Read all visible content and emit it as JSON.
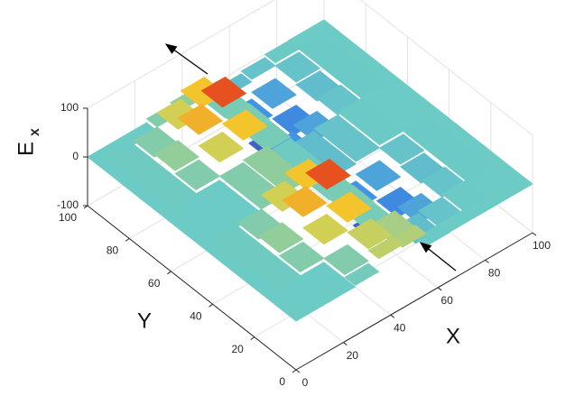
{
  "chart_data": {
    "type": "surface",
    "xlabel": "X",
    "ylabel": "Y",
    "zlabel": "E",
    "zlabel_subscript": "x",
    "x": [
      0,
      10,
      20,
      30,
      40,
      50,
      60,
      70,
      80,
      90,
      100
    ],
    "y": [
      0,
      10,
      20,
      30,
      40,
      50,
      60,
      70,
      80,
      90,
      100
    ],
    "z": [
      [
        0,
        0,
        0,
        3,
        30,
        25,
        -1,
        0,
        0,
        0,
        0
      ],
      [
        0,
        0,
        0,
        8,
        33,
        21,
        -12,
        -7,
        -1,
        0,
        0
      ],
      [
        0,
        1,
        8,
        37,
        54,
        4,
        -47,
        -33,
        -7,
        -1,
        0
      ],
      [
        0,
        1,
        14,
        60,
        88,
        6,
        -76,
        -54,
        -12,
        -1,
        0
      ],
      [
        0,
        1,
        8,
        37,
        54,
        4,
        -47,
        -33,
        -7,
        -1,
        0
      ],
      [
        0,
        0,
        0,
        8,
        13,
        1,
        -12,
        -7,
        -1,
        0,
        0
      ],
      [
        0,
        0,
        0,
        8,
        13,
        1,
        -12,
        -7,
        -1,
        0,
        0
      ],
      [
        0,
        1,
        8,
        37,
        54,
        4,
        -47,
        -33,
        -7,
        -1,
        0
      ],
      [
        0,
        1,
        14,
        60,
        88,
        6,
        -76,
        -54,
        -12,
        -1,
        0
      ],
      [
        0,
        1,
        8,
        37,
        54,
        4,
        -47,
        -33,
        -7,
        -1,
        0
      ],
      [
        0,
        0,
        0,
        8,
        13,
        1,
        -12,
        -7,
        -1,
        0,
        0
      ]
    ],
    "xlim": [
      0,
      100
    ],
    "xticks": [
      0,
      20,
      40,
      60,
      80,
      100
    ],
    "ylim": [
      0,
      100
    ],
    "yticks": [
      0,
      20,
      40,
      60,
      80,
      100
    ],
    "zlim": [
      -100,
      100
    ],
    "zticks": [
      -100,
      0,
      100
    ],
    "colormap": [
      "#3b3fa8",
      "#3f8fe6",
      "#6ccbc4",
      "#f5d22e",
      "#e2281b"
    ],
    "grid": true
  }
}
